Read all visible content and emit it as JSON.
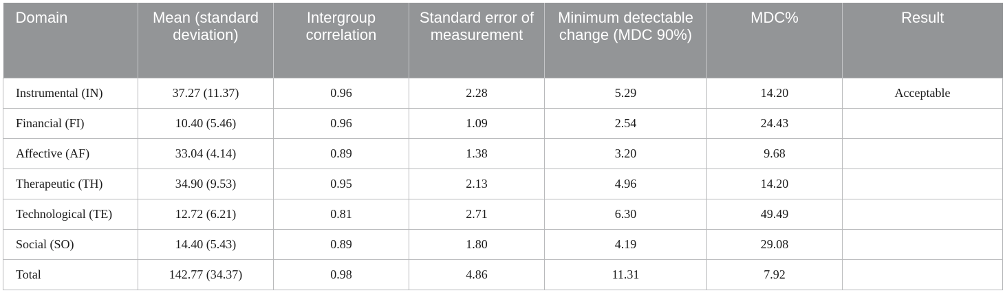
{
  "table": {
    "headers": [
      "Domain",
      "Mean (standard deviation)",
      "Intergroup correlation",
      "Standard error of measurement",
      "Minimum detectable change (MDC 90%)",
      "MDC%",
      "Result"
    ],
    "rows": [
      [
        "Instrumental (IN)",
        "37.27 (11.37)",
        "0.96",
        "2.28",
        "5.29",
        "14.20",
        "Acceptable"
      ],
      [
        "Financial (FI)",
        "10.40 (5.46)",
        "0.96",
        "1.09",
        "2.54",
        "24.43",
        ""
      ],
      [
        "Affective (AF)",
        "33.04 (4.14)",
        "0.89",
        "1.38",
        "3.20",
        "9.68",
        ""
      ],
      [
        "Therapeutic (TH)",
        "34.90 (9.53)",
        "0.95",
        "2.13",
        "4.96",
        "14.20",
        ""
      ],
      [
        "Technological (TE)",
        "12.72 (6.21)",
        "0.81",
        "2.71",
        "6.30",
        "49.49",
        ""
      ],
      [
        "Social (SO)",
        "14.40 (5.43)",
        "0.89",
        "1.80",
        "4.19",
        "29.08",
        ""
      ],
      [
        "Total",
        "142.77 (34.37)",
        "0.98",
        "4.86",
        "11.31",
        "7.92",
        ""
      ]
    ]
  },
  "colors": {
    "header_bg": "#939597",
    "header_text": "#ffffff",
    "border": "#b8b9bb"
  }
}
